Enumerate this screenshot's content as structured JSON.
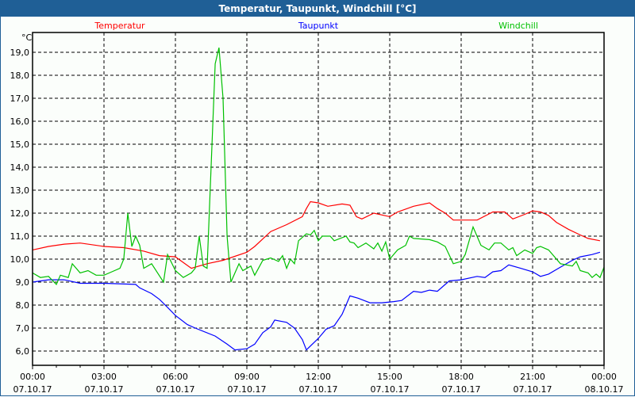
{
  "window": {
    "title": "Temperatur, Taupunkt, Windchill [°C]"
  },
  "chart_data": {
    "type": "line",
    "title": "Temperatur, Taupunkt, Windchill [°C]",
    "ylabel": "°C",
    "xlabel": "",
    "ylim": [
      5.4,
      19.8
    ],
    "xlim_hours": [
      0,
      24
    ],
    "grid": true,
    "y_ticks": [
      "6,0",
      "7,0",
      "8,0",
      "9,0",
      "10,0",
      "11,0",
      "12,0",
      "13,0",
      "14,0",
      "15,0",
      "16,0",
      "17,0",
      "18,0",
      "19,0"
    ],
    "x_ticks": [
      {
        "time": "00:00",
        "date": "07.10.17"
      },
      {
        "time": "03:00",
        "date": "07.10.17"
      },
      {
        "time": "06:00",
        "date": "07.10.17"
      },
      {
        "time": "09:00",
        "date": "07.10.17"
      },
      {
        "time": "12:00",
        "date": "07.10.17"
      },
      {
        "time": "15:00",
        "date": "07.10.17"
      },
      {
        "time": "18:00",
        "date": "07.10.17"
      },
      {
        "time": "21:00",
        "date": "07.10.17"
      },
      {
        "time": "00:00",
        "date": "08.10.17"
      }
    ],
    "series": [
      {
        "name": "Temperatur",
        "color": "#ff0000",
        "legend": "left",
        "points": [
          [
            0,
            10.4
          ],
          [
            0.67,
            10.55
          ],
          [
            1.33,
            10.65
          ],
          [
            2,
            10.7
          ],
          [
            3,
            10.55
          ],
          [
            3.83,
            10.5
          ],
          [
            4.67,
            10.35
          ],
          [
            5.33,
            10.15
          ],
          [
            6,
            10.1
          ],
          [
            6.67,
            9.6
          ],
          [
            7.33,
            9.8
          ],
          [
            8,
            9.95
          ],
          [
            9,
            10.3
          ],
          [
            9.33,
            10.55
          ],
          [
            10,
            11.2
          ],
          [
            10.67,
            11.5
          ],
          [
            11.33,
            11.85
          ],
          [
            11.5,
            12.2
          ],
          [
            11.67,
            12.5
          ],
          [
            12,
            12.45
          ],
          [
            12.4,
            12.3
          ],
          [
            13,
            12.4
          ],
          [
            13.33,
            12.35
          ],
          [
            13.6,
            11.85
          ],
          [
            13.83,
            11.75
          ],
          [
            14.33,
            12.0
          ],
          [
            15,
            11.85
          ],
          [
            15.33,
            12.05
          ],
          [
            16,
            12.3
          ],
          [
            16.67,
            12.45
          ],
          [
            17,
            12.2
          ],
          [
            17.33,
            12.0
          ],
          [
            17.67,
            11.7
          ],
          [
            18.67,
            11.7
          ],
          [
            19.33,
            12.05
          ],
          [
            19.83,
            12.05
          ],
          [
            20.17,
            11.75
          ],
          [
            20.67,
            11.95
          ],
          [
            21,
            12.1
          ],
          [
            21.33,
            12.05
          ],
          [
            21.67,
            11.9
          ],
          [
            22,
            11.6
          ],
          [
            22.5,
            11.3
          ],
          [
            23,
            11.05
          ],
          [
            23.33,
            10.9
          ],
          [
            23.83,
            10.8
          ]
        ]
      },
      {
        "name": "Taupunkt",
        "color": "#0000ff",
        "legend": "center",
        "points": [
          [
            0,
            9.0
          ],
          [
            0.67,
            9.1
          ],
          [
            1.33,
            9.1
          ],
          [
            2,
            8.95
          ],
          [
            3,
            8.95
          ],
          [
            4.33,
            8.9
          ],
          [
            4.5,
            8.75
          ],
          [
            5,
            8.5
          ],
          [
            5.33,
            8.25
          ],
          [
            5.67,
            7.9
          ],
          [
            6,
            7.55
          ],
          [
            6.5,
            7.15
          ],
          [
            6.83,
            7.0
          ],
          [
            7.67,
            6.65
          ],
          [
            8.17,
            6.3
          ],
          [
            8.5,
            6.05
          ],
          [
            9,
            6.1
          ],
          [
            9.33,
            6.3
          ],
          [
            9.67,
            6.8
          ],
          [
            10,
            7.05
          ],
          [
            10.17,
            7.35
          ],
          [
            10.67,
            7.25
          ],
          [
            11,
            7.0
          ],
          [
            11.33,
            6.5
          ],
          [
            11.5,
            6.05
          ],
          [
            12,
            6.55
          ],
          [
            12.33,
            6.95
          ],
          [
            12.67,
            7.1
          ],
          [
            13,
            7.6
          ],
          [
            13.33,
            8.4
          ],
          [
            13.67,
            8.3
          ],
          [
            14.17,
            8.1
          ],
          [
            14.67,
            8.1
          ],
          [
            15.17,
            8.15
          ],
          [
            15.5,
            8.2
          ],
          [
            16,
            8.6
          ],
          [
            16.33,
            8.55
          ],
          [
            16.67,
            8.65
          ],
          [
            17,
            8.6
          ],
          [
            17.5,
            9.05
          ],
          [
            18,
            9.1
          ],
          [
            18.67,
            9.25
          ],
          [
            19,
            9.2
          ],
          [
            19.33,
            9.45
          ],
          [
            19.67,
            9.5
          ],
          [
            20,
            9.75
          ],
          [
            20.5,
            9.6
          ],
          [
            21,
            9.45
          ],
          [
            21.33,
            9.25
          ],
          [
            21.67,
            9.35
          ],
          [
            22.17,
            9.65
          ],
          [
            22.67,
            9.95
          ],
          [
            23,
            10.1
          ],
          [
            23.5,
            10.2
          ],
          [
            23.83,
            10.3
          ]
        ]
      },
      {
        "name": "Windchill",
        "color": "#00c000",
        "legend": "right",
        "points": [
          [
            0,
            9.4
          ],
          [
            0.33,
            9.2
          ],
          [
            0.67,
            9.25
          ],
          [
            1,
            8.9
          ],
          [
            1.17,
            9.3
          ],
          [
            1.5,
            9.2
          ],
          [
            1.67,
            9.8
          ],
          [
            2,
            9.4
          ],
          [
            2.33,
            9.5
          ],
          [
            2.67,
            9.3
          ],
          [
            3,
            9.3
          ],
          [
            3.33,
            9.45
          ],
          [
            3.67,
            9.6
          ],
          [
            3.83,
            10.0
          ],
          [
            4,
            12.0
          ],
          [
            4.17,
            10.55
          ],
          [
            4.33,
            11.0
          ],
          [
            4.5,
            10.6
          ],
          [
            4.67,
            9.6
          ],
          [
            5,
            9.8
          ],
          [
            5.5,
            9.0
          ],
          [
            5.67,
            10.2
          ],
          [
            6,
            9.5
          ],
          [
            6.33,
            9.2
          ],
          [
            6.67,
            9.4
          ],
          [
            6.83,
            9.6
          ],
          [
            7,
            11.0
          ],
          [
            7.17,
            9.7
          ],
          [
            7.33,
            9.6
          ],
          [
            7.67,
            18.5
          ],
          [
            7.83,
            19.2
          ],
          [
            8,
            17.0
          ],
          [
            8.17,
            11.0
          ],
          [
            8.33,
            9.0
          ],
          [
            8.67,
            9.8
          ],
          [
            8.83,
            9.5
          ],
          [
            9.17,
            9.7
          ],
          [
            9.33,
            9.3
          ],
          [
            9.67,
            9.95
          ],
          [
            10,
            10.05
          ],
          [
            10.33,
            9.9
          ],
          [
            10.5,
            10.15
          ],
          [
            10.67,
            9.6
          ],
          [
            10.83,
            10.0
          ],
          [
            11,
            9.8
          ],
          [
            11.17,
            10.8
          ],
          [
            11.5,
            11.1
          ],
          [
            11.67,
            11.05
          ],
          [
            11.83,
            11.25
          ],
          [
            12,
            10.8
          ],
          [
            12.17,
            11.0
          ],
          [
            12.5,
            11.0
          ],
          [
            12.67,
            10.8
          ],
          [
            13.17,
            11.0
          ],
          [
            13.33,
            10.75
          ],
          [
            13.5,
            10.7
          ],
          [
            13.67,
            10.5
          ],
          [
            14,
            10.7
          ],
          [
            14.33,
            10.45
          ],
          [
            14.5,
            10.7
          ],
          [
            14.67,
            10.35
          ],
          [
            14.83,
            10.75
          ],
          [
            15,
            10.0
          ],
          [
            15.33,
            10.4
          ],
          [
            15.67,
            10.6
          ],
          [
            15.83,
            11.0
          ],
          [
            16,
            10.9
          ],
          [
            16.67,
            10.85
          ],
          [
            17,
            10.75
          ],
          [
            17.33,
            10.55
          ],
          [
            17.67,
            9.8
          ],
          [
            18,
            9.9
          ],
          [
            18.17,
            10.2
          ],
          [
            18.5,
            11.4
          ],
          [
            18.83,
            10.6
          ],
          [
            19.17,
            10.4
          ],
          [
            19.4,
            10.7
          ],
          [
            19.67,
            10.7
          ],
          [
            20,
            10.4
          ],
          [
            20.17,
            10.5
          ],
          [
            20.33,
            10.15
          ],
          [
            20.67,
            10.4
          ],
          [
            21,
            10.25
          ],
          [
            21.17,
            10.5
          ],
          [
            21.33,
            10.55
          ],
          [
            21.67,
            10.4
          ],
          [
            22.17,
            9.8
          ],
          [
            22.67,
            9.7
          ],
          [
            22.83,
            9.9
          ],
          [
            23,
            9.5
          ],
          [
            23.33,
            9.4
          ],
          [
            23.5,
            9.2
          ],
          [
            23.67,
            9.35
          ],
          [
            23.83,
            9.2
          ],
          [
            24,
            9.65
          ]
        ]
      }
    ]
  }
}
